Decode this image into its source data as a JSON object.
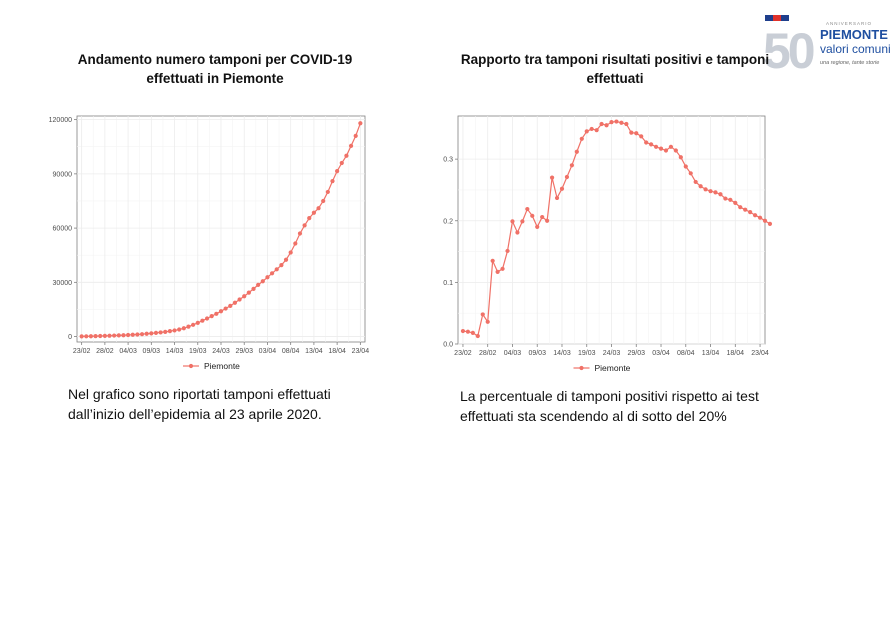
{
  "header": {
    "logo": {
      "number": "50",
      "small_text": "ANNIVERSARIO",
      "line1": "PIEMONTE",
      "line2": "valori comuni",
      "tagline": "una regione, tante storie"
    }
  },
  "colors": {
    "series": "#f07167",
    "grid": "#ececec",
    "axis": "#7f7f7f"
  },
  "charts": [
    {
      "title": "Andamento numero tamponi per COVID-19 effettuati in Piemonte",
      "description": "Nel grafico sono riportati tamponi effettuati dall’inizio dell’epidemia al 23 aprile 2020."
    },
    {
      "title": "Rapporto tra tamponi risultati positivi e tamponi effettuati",
      "description": "La percentuale di tamponi positivi rispetto ai test effettuati sta scendendo al di sotto del 20%"
    }
  ],
  "chart_data": [
    {
      "type": "line",
      "title": "Andamento numero tamponi per COVID-19 effettuati in Piemonte",
      "xlabel": "",
      "ylabel": "",
      "x_start": "23/02",
      "x_end": "23/04",
      "x_ticks": [
        "23/02",
        "28/02",
        "04/03",
        "09/03",
        "14/03",
        "19/03",
        "24/03",
        "29/03",
        "03/04",
        "08/04",
        "13/04",
        "18/04",
        "23/04"
      ],
      "y_ticks": [
        0,
        30000,
        60000,
        90000,
        120000
      ],
      "y_tick_labels": [
        "0",
        "30000",
        "60000",
        "90000",
        "120000"
      ],
      "ylim": [
        -3000,
        122000
      ],
      "grid": true,
      "legend_position": "bottom",
      "series": [
        {
          "name": "Piemonte",
          "values": [
            100,
            150,
            200,
            260,
            320,
            400,
            480,
            560,
            650,
            750,
            880,
            1000,
            1150,
            1320,
            1550,
            1780,
            2050,
            2300,
            2600,
            3000,
            3400,
            3900,
            4600,
            5500,
            6500,
            7600,
            8800,
            10000,
            11300,
            12600,
            14000,
            15500,
            17000,
            18700,
            20500,
            22300,
            24300,
            26400,
            28600,
            30600,
            32800,
            35000,
            37200,
            39500,
            42500,
            46500,
            51500,
            57000,
            61500,
            65500,
            68500,
            71000,
            75000,
            80000,
            86000,
            91500,
            96000,
            100000,
            105500,
            111000,
            118000
          ]
        }
      ]
    },
    {
      "type": "line",
      "title": "Rapporto tra tamponi risultati positivi e tamponi effettuati",
      "xlabel": "",
      "ylabel": "",
      "x_start": "23/02",
      "x_end": "23/04",
      "x_ticks": [
        "23/02",
        "28/02",
        "04/03",
        "09/03",
        "14/03",
        "19/03",
        "24/03",
        "29/03",
        "03/04",
        "08/04",
        "13/04",
        "18/04",
        "23/04"
      ],
      "y_ticks": [
        0,
        0.1,
        0.2,
        0.3
      ],
      "y_tick_labels": [
        "0.0",
        "0.1",
        "0.2",
        "0.3"
      ],
      "ylim": [
        0,
        0.37
      ],
      "grid": true,
      "legend_position": "bottom",
      "series": [
        {
          "name": "Piemonte",
          "values": [
            0.021,
            0.02,
            0.018,
            0.013,
            0.048,
            0.036,
            0.135,
            0.117,
            0.122,
            0.151,
            0.199,
            0.181,
            0.199,
            0.219,
            0.208,
            0.19,
            0.206,
            0.2,
            0.27,
            0.237,
            0.252,
            0.271,
            0.29,
            0.312,
            0.333,
            0.345,
            0.349,
            0.347,
            0.357,
            0.355,
            0.36,
            0.361,
            0.359,
            0.357,
            0.343,
            0.342,
            0.337,
            0.327,
            0.324,
            0.32,
            0.317,
            0.314,
            0.32,
            0.314,
            0.303,
            0.288,
            0.277,
            0.263,
            0.256,
            0.251,
            0.248,
            0.246,
            0.243,
            0.236,
            0.234,
            0.229,
            0.222,
            0.218,
            0.214,
            0.209,
            0.205,
            0.2,
            0.195
          ]
        }
      ]
    }
  ]
}
